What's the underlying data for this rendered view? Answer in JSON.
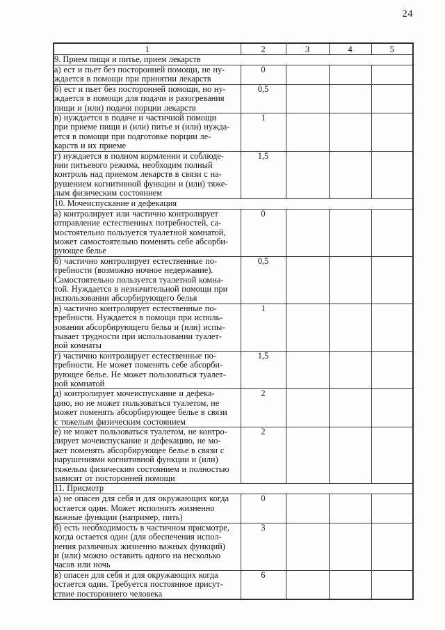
{
  "page": {
    "number": "24"
  },
  "table": {
    "header": [
      "1",
      "2",
      "3",
      "4",
      "5"
    ],
    "sections": [
      {
        "title": "9. Прием пищи и питье, прием лекарств",
        "rows": [
          {
            "text": "а) ест и пьет без посторонней помощи, не ну-\nждается в помощи при принятии лекарств",
            "score": "0"
          },
          {
            "text": "б) ест и пьет без посторонней помощи, но ну-\nждается в помощи для подачи и разогревания\nпищи и (или) подачи порции лекарств",
            "score": "0,5"
          },
          {
            "text": "в) нуждается в подаче и частичной помощи\nпри приеме пищи и (или) питье и (или) нужда-\nется в помощи при подготовке порции ле-\nкарств и их приеме",
            "score": "1"
          },
          {
            "text": "г) нуждается в полном кормлении и соблюде-\nнии питьевого режима, необходим полный\nконтроль над приемом лекарств в связи с на-\nрушением когнитивной функции и (или) тяже-\nлым физическим состоянием",
            "score": "1,5"
          }
        ]
      },
      {
        "title": "10. Мочеиспускание и дефекация",
        "rows": [
          {
            "text": "а) контролирует или частично контролирует\nотправление естественных потребностей, са-\nмостоятельно пользуется туалетной комнатой,\nможет самостоятельно поменять себе абсорби-\nрующее белье",
            "score": "0"
          },
          {
            "text": "б) частично контролирует естественные по-\nтребности (возможно ночное недержание).\nСамостоятельно пользуется туалетной комна-\nтой. Нуждается в незначительной помощи при\nиспользовании абсорбирующего белья",
            "score": "0,5"
          },
          {
            "text": "в) частично контролирует естественные по-\nтребности. Нуждается в помощи при исполь-\nзовании абсорбирующего белья и (или) испы-\nтывает трудности при использовании туалет-\nной комнаты",
            "score": "1"
          },
          {
            "text": "г) частично контролирует естественные по-\nтребности. Не может поменять себе абсорби-\nрующее белье. Не может пользоваться туалет-\nной комнатой",
            "score": "1,5"
          },
          {
            "text": "д) контролирует мочеиспускание и дефека-\nцию, но не может пользоваться туалетом, не\nможет поменять абсорбирующее белье в связи\nс тяжелым физическим состоянием",
            "score": "2"
          },
          {
            "text": "е) не может пользоваться туалетом, не контро-\nлирует мочеиспускание и дефекацию, не мо-\nжет поменять абсорбирующее белье в связи с\nнарушениями когнитивной функции и (или)\nтяжелым физическим состоянием и полностью\nзависит от посторонней помощи",
            "score": "2"
          }
        ]
      },
      {
        "title": "11. Присмотр",
        "rows": [
          {
            "text": "а) не опасен для себя и для окружающих когда\nостается один. Может исполнять жизненно\nважные функции (например, пить)",
            "score": "0"
          },
          {
            "text": "б) есть необходимость в частичном присмотре,\nкогда остается один (для обеспечения испол-\nнения различных жизненно важных функций)\nи (или) можно оставить одного на несколько\nчасов или ночь",
            "score": "3"
          },
          {
            "text": "в) опасен для себя и для окружающих когда\nостается один. Требуется постоянное присут-\nствие постороннего человека",
            "score": "6"
          }
        ]
      }
    ]
  }
}
